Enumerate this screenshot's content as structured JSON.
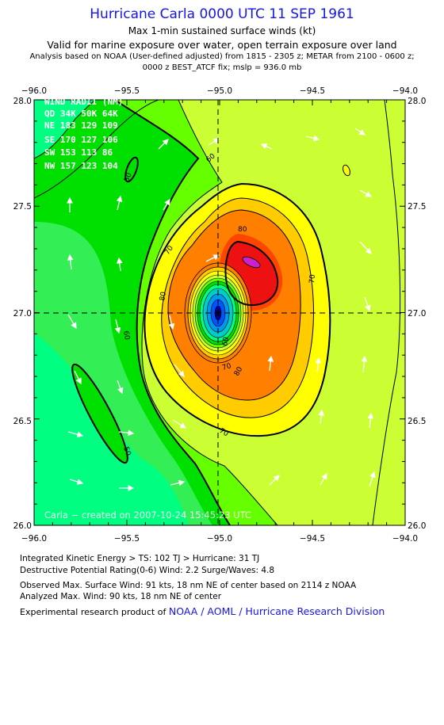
{
  "header": {
    "title": "Hurricane Carla 0000 UTC 11 SEP 1961",
    "subtitle": "Max 1-min sustained surface winds (kt)",
    "valid_line": "Valid for marine exposure over water, open terrain exposure over land",
    "analysis_line_1": "Analysis based on  NOAA (User-defined adjusted) from 1815 - 2305 z;  METAR from 2100 - 0600 z;",
    "analysis_line_2": "0000 z BEST_ATCF fix; mslp = 936.0 mb"
  },
  "map": {
    "lon_ticks": [
      "−96.0",
      "−95.5",
      "−95.0",
      "−94.5",
      "−94.0"
    ],
    "lat_ticks": [
      "26.0",
      "26.5",
      "27.0",
      "27.5",
      "28.0"
    ],
    "center_marker": "×",
    "contour_labels": [
      "60",
      "50",
      "60",
      "70",
      "80",
      "80",
      "80",
      "70",
      "70",
      "70",
      "60",
      "50"
    ],
    "credit": "Carla  −  created  on  2007-10-24  15:45:23  UTC",
    "colors": {
      "lt35": "#00ff80",
      "k35": "#33ee55",
      "k40": "#00e000",
      "k50": "#66ff00",
      "k60": "#ccff33",
      "k65": "#ffff00",
      "k70": "#ffcc00",
      "k80": "#ff8000",
      "k85": "#ff4400",
      "k90": "#ee1111",
      "peak": "#cc22cc",
      "eye_outer": "#00cccc",
      "eye_inner": "#0055ff",
      "eye_core": "#0000a0"
    }
  },
  "wind_radii": {
    "title": "WIND RADII (NM)",
    "header_row": "QD  34K  50K  64K",
    "rows": [
      "NE  183  129  109",
      "SE  170  127  106",
      "SW  153  113   86",
      "NW  157  123  104"
    ]
  },
  "footer": {
    "ike": "Integrated Kinetic Energy > TS: 102 TJ   > Hurricane: 31 TJ",
    "dpr": "Destructive Potential Rating(0-6)   Wind: 2.2 Surge/Waves: 4.8",
    "observed": "Observed Max. Surface Wind: 91 kts, 18 nm NE of center based on 2114 z NOAA",
    "analyzed": "Analyzed Max. Wind: 90 kts, 18 nm NE of center",
    "product_prefix": "Experimental research product of ",
    "product_link": "NOAA / AOML / Hurricane Research Division"
  }
}
